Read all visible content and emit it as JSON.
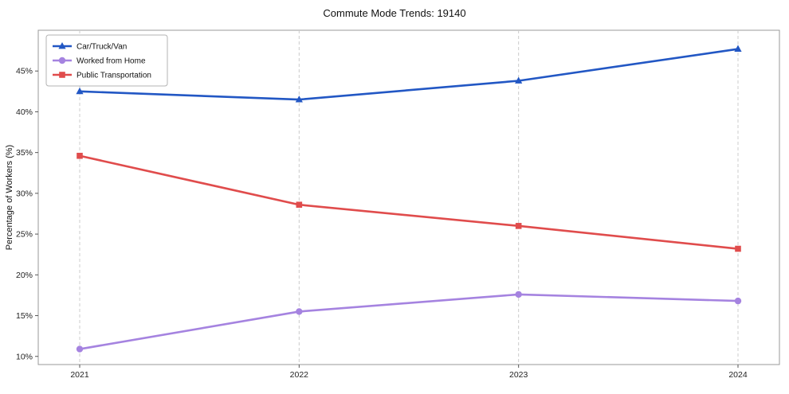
{
  "chart_data": {
    "type": "line",
    "title": "Commute Mode Trends: 19140",
    "xlabel": "",
    "ylabel": "Percentage of Workers (%)",
    "x": [
      2021,
      2022,
      2023,
      2024
    ],
    "series": [
      {
        "name": "Car/Truck/Van",
        "values": [
          42.5,
          41.5,
          43.8,
          47.7
        ],
        "color": "#2257c4",
        "marker": "triangle"
      },
      {
        "name": "Worked from Home",
        "values": [
          10.9,
          15.5,
          17.6,
          16.8
        ],
        "color": "#a583e0",
        "marker": "circle"
      },
      {
        "name": "Public Transportation",
        "values": [
          34.6,
          28.6,
          26.0,
          23.2
        ],
        "color": "#e04c4c",
        "marker": "square"
      }
    ],
    "ylim": [
      9,
      50
    ],
    "yticks": [
      10,
      15,
      20,
      25,
      30,
      35,
      40,
      45
    ],
    "ytick_suffix": "%",
    "legend_position": "upper left",
    "grid": "vertical-dashed",
    "gridline_color": "#cccccc",
    "spine_color": "#9a9a9a",
    "tick_label_color": "#222222"
  }
}
